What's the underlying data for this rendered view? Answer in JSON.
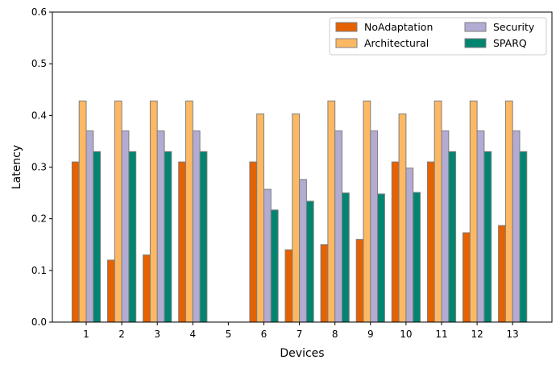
{
  "chart_data": {
    "type": "bar",
    "title": "",
    "xlabel": "Devices",
    "ylabel": "Latency",
    "ylim": [
      0,
      0.6
    ],
    "yticks": [
      "0.0",
      "0.1",
      "0.2",
      "0.3",
      "0.4",
      "0.5",
      "0.6"
    ],
    "grid": false,
    "legend_position": "top-right",
    "categories": [
      "1",
      "2",
      "3",
      "4",
      "5",
      "6",
      "7",
      "8",
      "9",
      "10",
      "11",
      "12",
      "13"
    ],
    "series": [
      {
        "name": "NoAdaptation",
        "color": "#e66100",
        "values": [
          0.31,
          0.12,
          0.13,
          0.31,
          0,
          0.31,
          0.14,
          0.15,
          0.16,
          0.31,
          0.31,
          0.173,
          0.187
        ]
      },
      {
        "name": "Architectural",
        "color": "#fdb863",
        "values": [
          0.428,
          0.428,
          0.428,
          0.428,
          0,
          0.403,
          0.403,
          0.428,
          0.428,
          0.403,
          0.428,
          0.428,
          0.428
        ]
      },
      {
        "name": "Security",
        "color": "#b2abd2",
        "values": [
          0.37,
          0.37,
          0.37,
          0.37,
          0,
          0.257,
          0.276,
          0.37,
          0.37,
          0.298,
          0.37,
          0.37,
          0.37
        ]
      },
      {
        "name": "SPARQ",
        "color": "#018571",
        "values": [
          0.33,
          0.33,
          0.33,
          0.33,
          0,
          0.217,
          0.234,
          0.25,
          0.248,
          0.251,
          0.33,
          0.33,
          0.33
        ]
      }
    ]
  }
}
